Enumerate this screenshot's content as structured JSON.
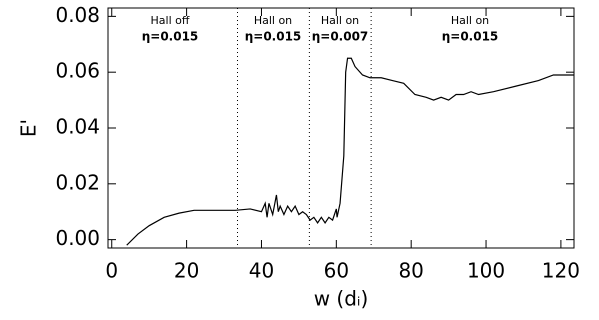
{
  "chart_data": {
    "type": "line",
    "x_label": "w (dᵢ)",
    "y_label": "E'",
    "annotations": [
      "Hall off",
      "η=0.015",
      "Hall on",
      "η=0.015",
      "Hall on",
      "η=0.007",
      "Hall on",
      "η=0.015"
    ],
    "regions": [
      33.6,
      52.8,
      69.3
    ],
    "x": [
      4,
      7,
      10,
      14,
      18,
      22,
      30,
      33,
      37,
      40,
      41,
      41.5,
      42,
      43,
      44,
      44.5,
      45,
      46,
      47,
      48,
      49,
      50,
      51,
      52,
      53,
      54,
      55,
      56,
      57,
      58,
      59,
      60,
      60.2,
      61,
      62,
      62.5,
      63,
      64,
      65,
      67,
      69,
      72,
      75,
      78,
      81,
      84,
      86,
      88,
      90,
      92,
      94,
      96,
      98,
      102,
      108,
      114,
      118,
      123.5
    ],
    "series": [
      {
        "color": "#000000",
        "values": [
          -0.002,
          0.002,
          0.005,
          0.008,
          0.0095,
          0.0105,
          0.0105,
          0.0105,
          0.011,
          0.01,
          0.013,
          0.008,
          0.013,
          0.009,
          0.016,
          0.01,
          0.012,
          0.009,
          0.012,
          0.01,
          0.012,
          0.009,
          0.01,
          0.009,
          0.007,
          0.008,
          0.006,
          0.008,
          0.006,
          0.008,
          0.007,
          0.011,
          0.008,
          0.013,
          0.03,
          0.06,
          0.065,
          0.065,
          0.062,
          0.059,
          0.058,
          0.058,
          0.057,
          0.056,
          0.052,
          0.051,
          0.05,
          0.051,
          0.05,
          0.052,
          0.052,
          0.053,
          0.052,
          0.053,
          0.055,
          0.057,
          0.059,
          0.059
        ]
      }
    ],
    "xlim": [
      -1,
      123.5
    ],
    "ylim": [
      -0.003,
      0.083
    ],
    "xticks": [
      0,
      20,
      40,
      60,
      80,
      100,
      120
    ],
    "yticks": [
      {
        "value": 0,
        "label": "0.00"
      },
      {
        "value": 0.02,
        "label": "0.02"
      },
      {
        "value": 0.04,
        "label": "0.04"
      },
      {
        "value": 0.06,
        "label": "0.06"
      },
      {
        "value": 0.08,
        "label": "0.08"
      }
    ]
  }
}
